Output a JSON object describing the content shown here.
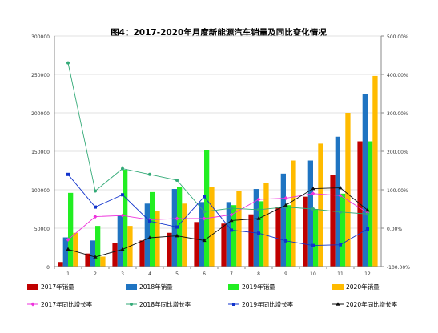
{
  "chart_data": {
    "type": "bar",
    "title": "图4：2017-2020年月度新能源汽车销量及同比变化情况",
    "categories": [
      "1",
      "2",
      "3",
      "4",
      "5",
      "6",
      "7",
      "8",
      "9",
      "10",
      "11",
      "12"
    ],
    "left_axis": {
      "min": 0,
      "max": 300000,
      "step": 50000,
      "tick_labels": [
        "0",
        "50000",
        "100000",
        "150000",
        "200000",
        "250000",
        "300000"
      ]
    },
    "right_axis": {
      "min": -100,
      "max": 500,
      "step": 100,
      "tick_labels": [
        "-100.00%",
        "0.00%",
        "100.00%",
        "200.00%",
        "300.00%",
        "400.00%",
        "500.00%"
      ]
    },
    "bar_series": [
      {
        "name": "2017年销量",
        "color": "#c00000",
        "values": [
          6000,
          17000,
          31000,
          34000,
          44000,
          58000,
          56000,
          68000,
          78000,
          91000,
          119000,
          163000
        ]
      },
      {
        "name": "2018年销量",
        "color": "#1f74c2",
        "values": [
          38000,
          34000,
          67000,
          82000,
          101000,
          84000,
          84000,
          101000,
          121000,
          138000,
          169000,
          225000
        ]
      },
      {
        "name": "2019年销量",
        "color": "#22ee22",
        "values": [
          96000,
          53000,
          126000,
          97000,
          104000,
          152000,
          80000,
          85000,
          80000,
          75000,
          95000,
          163000
        ]
      },
      {
        "name": "2020年销量",
        "color": "#ffbb00",
        "values": [
          44000,
          13000,
          53000,
          72000,
          82000,
          104000,
          98000,
          109000,
          138000,
          160000,
          200000,
          248000
        ]
      }
    ],
    "line_series": [
      {
        "name": "2017年同比增长率",
        "color": "#ee33dd",
        "marker": "diamond",
        "values": [
          -30,
          30,
          33,
          22,
          25,
          25,
          35,
          75,
          78,
          90,
          85,
          40
        ]
      },
      {
        "name": "2018年同比增长率",
        "color": "#33aa77",
        "marker": "circle",
        "values": [
          430,
          97,
          155,
          140,
          125,
          43,
          52,
          48,
          55,
          50,
          42,
          37
        ]
      },
      {
        "name": "2019年同比增长率",
        "color": "#1133cc",
        "marker": "square",
        "values": [
          140,
          55,
          87,
          18,
          3,
          82,
          -5,
          -13,
          -33,
          -45,
          -43,
          -2
        ]
      },
      {
        "name": "2020年同比增长率",
        "color": "#111111",
        "marker": "triangle",
        "values": [
          -55,
          -75,
          -55,
          -25,
          -20,
          -32,
          20,
          25,
          60,
          103,
          105,
          47
        ]
      }
    ],
    "legend_position": "bottom",
    "grid": true
  }
}
